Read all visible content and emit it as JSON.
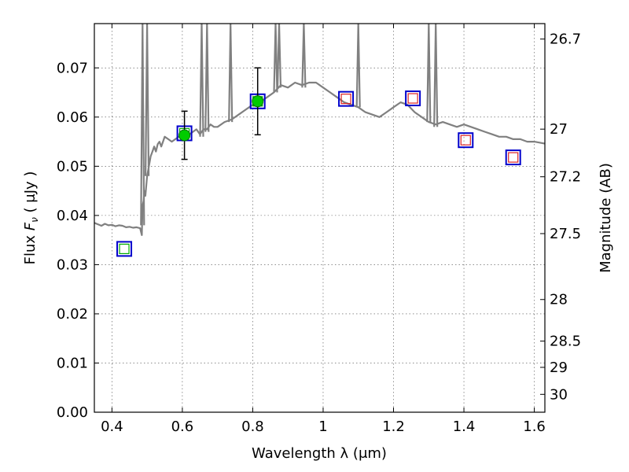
{
  "chart_data": {
    "type": "scatter",
    "xlabel": "Wavelength  λ (μm)",
    "ylabel": "Flux  F_ν  ( μJy )",
    "ylabel_parts": {
      "prefix": "Flux  ",
      "symbol": "F",
      "subscript": "ν",
      "unit": "  ( μJy )"
    },
    "ylabel_right": "Magnitude (AB)",
    "xlim": [
      0.35,
      1.63
    ],
    "ylim": [
      0.0,
      0.079
    ],
    "x_ticks": [
      0.4,
      0.6,
      0.8,
      1.0,
      1.2,
      1.4,
      1.6
    ],
    "x_tick_labels": [
      "0.4",
      "0.6",
      "0.8",
      "1",
      "1.2",
      "1.4",
      "1.6"
    ],
    "y_ticks": [
      0.0,
      0.01,
      0.02,
      0.03,
      0.04,
      0.05,
      0.06,
      0.07
    ],
    "y_tick_labels": [
      "0.00",
      "0.01",
      "0.02",
      "0.03",
      "0.04",
      "0.05",
      "0.06",
      "0.07"
    ],
    "mag_ticks": [
      26.7,
      27,
      27.2,
      27.5,
      28,
      28.5,
      29,
      30
    ],
    "mag_tick_labels": [
      "26.7",
      "27",
      "27.2",
      "27.5",
      "28",
      "28.5",
      "29",
      "30"
    ],
    "grid": true,
    "series": [
      {
        "name": "model_sed",
        "kind": "line",
        "color": "#808080",
        "x": [
          0.35,
          0.36,
          0.37,
          0.38,
          0.39,
          0.4,
          0.41,
          0.42,
          0.43,
          0.44,
          0.45,
          0.46,
          0.47,
          0.48,
          0.485,
          0.487,
          0.49,
          0.492,
          0.495,
          0.5,
          0.505,
          0.51,
          0.515,
          0.52,
          0.525,
          0.53,
          0.535,
          0.54,
          0.545,
          0.55,
          0.56,
          0.57,
          0.58,
          0.59,
          0.6,
          0.61,
          0.62,
          0.63,
          0.64,
          0.65,
          0.655,
          0.66,
          0.67,
          0.68,
          0.69,
          0.7,
          0.72,
          0.74,
          0.76,
          0.78,
          0.8,
          0.82,
          0.84,
          0.86,
          0.88,
          0.9,
          0.92,
          0.94,
          0.96,
          0.98,
          1.0,
          1.02,
          1.04,
          1.06,
          1.08,
          1.1,
          1.12,
          1.14,
          1.16,
          1.18,
          1.2,
          1.22,
          1.24,
          1.26,
          1.28,
          1.3,
          1.32,
          1.34,
          1.36,
          1.38,
          1.4,
          1.42,
          1.44,
          1.46,
          1.48,
          1.5,
          1.52,
          1.54,
          1.56,
          1.58,
          1.6,
          1.63
        ],
        "y": [
          0.0385,
          0.0382,
          0.0379,
          0.0383,
          0.038,
          0.0381,
          0.0378,
          0.038,
          0.0379,
          0.0376,
          0.0377,
          0.0375,
          0.0376,
          0.0374,
          0.036,
          0.042,
          0.043,
          0.045,
          0.044,
          0.048,
          0.05,
          0.052,
          0.053,
          0.054,
          0.053,
          0.0545,
          0.055,
          0.054,
          0.055,
          0.056,
          0.0555,
          0.055,
          0.0555,
          0.056,
          0.056,
          0.0565,
          0.0565,
          0.057,
          0.0575,
          0.0565,
          0.057,
          0.0575,
          0.0575,
          0.0585,
          0.058,
          0.058,
          0.059,
          0.0595,
          0.0605,
          0.0615,
          0.0625,
          0.063,
          0.064,
          0.065,
          0.0665,
          0.066,
          0.067,
          0.0665,
          0.067,
          0.067,
          0.066,
          0.065,
          0.064,
          0.063,
          0.0625,
          0.062,
          0.061,
          0.0605,
          0.06,
          0.061,
          0.062,
          0.063,
          0.0625,
          0.061,
          0.06,
          0.059,
          0.0585,
          0.059,
          0.0585,
          0.058,
          0.0585,
          0.058,
          0.0575,
          0.057,
          0.0565,
          0.056,
          0.056,
          0.0555,
          0.0555,
          0.055,
          0.055,
          0.0546
        ]
      },
      {
        "name": "model_spikes",
        "kind": "emission_lines",
        "color": "#808080",
        "lines": [
          {
            "x": 0.487,
            "base": 0.038,
            "peak": 0.079
          },
          {
            "x": 0.5,
            "base": 0.048,
            "peak": 0.079
          },
          {
            "x": 0.655,
            "base": 0.056,
            "peak": 0.079
          },
          {
            "x": 0.67,
            "base": 0.057,
            "peak": 0.079
          },
          {
            "x": 0.737,
            "base": 0.059,
            "peak": 0.079
          },
          {
            "x": 0.865,
            "base": 0.065,
            "peak": 0.079
          },
          {
            "x": 0.875,
            "base": 0.066,
            "peak": 0.079
          },
          {
            "x": 0.945,
            "base": 0.066,
            "peak": 0.079
          },
          {
            "x": 1.1,
            "base": 0.062,
            "peak": 0.079
          },
          {
            "x": 1.3,
            "base": 0.059,
            "peak": 0.079
          },
          {
            "x": 1.32,
            "base": 0.058,
            "peak": 0.079
          }
        ]
      },
      {
        "name": "observed_photometry",
        "kind": "points",
        "color": "#00cc00",
        "points": [
          {
            "x": 0.606,
            "y": 0.0563,
            "err": 0.0049
          },
          {
            "x": 0.814,
            "y": 0.0632,
            "err": 0.0068
          }
        ]
      },
      {
        "name": "model_photometry",
        "kind": "squares",
        "edge_color": "#0000cc",
        "points": [
          {
            "x": 0.435,
            "y": 0.0332,
            "inner": "#00aa00"
          },
          {
            "x": 0.606,
            "y": 0.0567,
            "inner": "#00aa00"
          },
          {
            "x": 0.814,
            "y": 0.0632,
            "inner": "#00aa00"
          },
          {
            "x": 1.065,
            "y": 0.0637,
            "inner": "#dd2222"
          },
          {
            "x": 1.255,
            "y": 0.0638,
            "inner": "#dd2222"
          },
          {
            "x": 1.405,
            "y": 0.0553,
            "inner": "#dd2222"
          },
          {
            "x": 1.54,
            "y": 0.0518,
            "inner": "#dd2222"
          }
        ]
      }
    ]
  }
}
